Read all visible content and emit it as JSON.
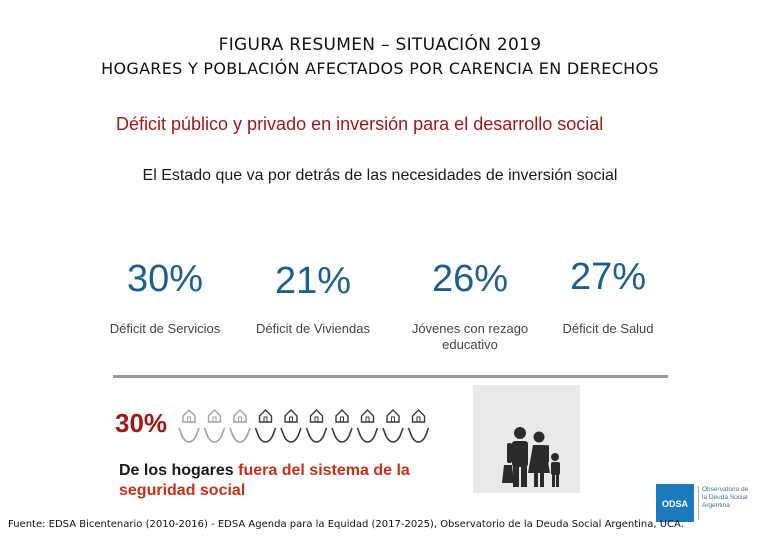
{
  "header": {
    "title": "FIGURA RESUMEN – SITUACIÓN 2019",
    "subtitle": "HOGARES Y POBLACIÓN AFECTADOS POR CARENCIA EN DERECHOS"
  },
  "section": {
    "heading": "Déficit público y privado en inversión para el desarrollo social",
    "subheading": "El Estado que va por detrás de las necesidades de inversión social"
  },
  "stats": [
    {
      "value": "30%",
      "label": "Déficit de Servicios"
    },
    {
      "value": "21%",
      "label": "Déficit de Viviendas"
    },
    {
      "value": "26%",
      "label": "Jóvenes con rezago educativo"
    },
    {
      "value": "27%",
      "label": "Déficit de Salud"
    }
  ],
  "homes": {
    "value": "30%",
    "text_prefix": "De los hogares ",
    "text_highlight": "fuera del sistema de la seguridad social",
    "icons_total": 10,
    "icons_highlighted": 3
  },
  "logo": {
    "mark": "ODSA",
    "name": "Observatorio de la Deuda Social Argentina"
  },
  "footer": {
    "source": "Fuente: EDSA Bicentenario (2010-2016) - EDSA Agenda para la Equidad (2017-2025), Observatorio de la Deuda Social Argentina, UCA."
  },
  "colors": {
    "accent_red": "#a01818",
    "highlight_red": "#c0321a",
    "stat_blue": "#1f5f8b",
    "logo_blue": "#1a7bbf"
  }
}
